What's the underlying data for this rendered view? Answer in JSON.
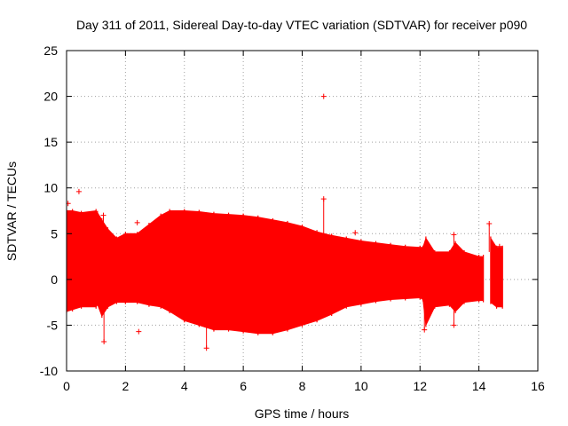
{
  "chart_data": {
    "type": "scatter",
    "title": "Day 311 of 2011, Sidereal Day-to-day VTEC variation (SDTVAR) for receiver p090",
    "xlabel": "GPS time / hours",
    "ylabel": "SDTVAR / TECUs",
    "xlim": [
      0,
      16
    ],
    "ylim": [
      -10,
      25
    ],
    "xticks": [
      0,
      2,
      4,
      6,
      8,
      10,
      12,
      14,
      16
    ],
    "yticks": [
      -10,
      -5,
      0,
      5,
      10,
      15,
      20,
      25
    ],
    "grid": true,
    "marker": "+",
    "color": "#ff0000",
    "series": [
      {
        "name": "SDTVAR",
        "description_of_band": "approximate upper/lower envelope of dense point cloud",
        "envelope": [
          {
            "x": 0.0,
            "high": 7.5,
            "low": -3.5
          },
          {
            "x": 0.2,
            "high": 7.5,
            "low": -3.3
          },
          {
            "x": 0.5,
            "high": 7.3,
            "low": -3.0
          },
          {
            "x": 1.0,
            "high": 7.5,
            "low": -3.0
          },
          {
            "x": 1.05,
            "high": 7.3,
            "low": -2.7
          },
          {
            "x": 1.2,
            "high": 6.5,
            "low": -4.0
          },
          {
            "x": 1.4,
            "high": 5.5,
            "low": -3.0
          },
          {
            "x": 1.7,
            "high": 4.5,
            "low": -2.5
          },
          {
            "x": 2.0,
            "high": 5.0,
            "low": -2.5
          },
          {
            "x": 2.4,
            "high": 5.0,
            "low": -2.5
          },
          {
            "x": 2.8,
            "high": 6.0,
            "low": -2.8
          },
          {
            "x": 3.2,
            "high": 7.0,
            "low": -3.0
          },
          {
            "x": 3.5,
            "high": 7.5,
            "low": -3.5
          },
          {
            "x": 4.0,
            "high": 7.5,
            "low": -4.5
          },
          {
            "x": 4.5,
            "high": 7.4,
            "low": -5.0
          },
          {
            "x": 5.0,
            "high": 7.2,
            "low": -5.5
          },
          {
            "x": 5.5,
            "high": 7.1,
            "low": -5.5
          },
          {
            "x": 6.0,
            "high": 7.0,
            "low": -5.7
          },
          {
            "x": 6.5,
            "high": 6.8,
            "low": -5.9
          },
          {
            "x": 7.0,
            "high": 6.5,
            "low": -5.9
          },
          {
            "x": 7.5,
            "high": 6.2,
            "low": -5.5
          },
          {
            "x": 8.0,
            "high": 5.8,
            "low": -5.0
          },
          {
            "x": 8.5,
            "high": 5.2,
            "low": -4.5
          },
          {
            "x": 9.0,
            "high": 4.8,
            "low": -3.8
          },
          {
            "x": 9.5,
            "high": 4.5,
            "low": -3.0
          },
          {
            "x": 10.0,
            "high": 4.2,
            "low": -2.7
          },
          {
            "x": 10.5,
            "high": 4.0,
            "low": -2.4
          },
          {
            "x": 11.0,
            "high": 3.8,
            "low": -2.2
          },
          {
            "x": 11.5,
            "high": 3.6,
            "low": -2.1
          },
          {
            "x": 12.0,
            "high": 3.5,
            "low": -2.0
          },
          {
            "x": 12.1,
            "high": 3.5,
            "low": -2.2
          },
          {
            "x": 12.2,
            "high": 4.5,
            "low": -5.0
          },
          {
            "x": 12.5,
            "high": 3.0,
            "low": -3.0
          },
          {
            "x": 13.0,
            "high": 3.0,
            "low": -2.8
          },
          {
            "x": 13.2,
            "high": 4.0,
            "low": -3.5
          },
          {
            "x": 13.5,
            "high": 3.0,
            "low": -2.5
          },
          {
            "x": 14.0,
            "high": 2.5,
            "low": -2.3
          },
          {
            "x": 14.15,
            "high": 2.5,
            "low": -2.3
          },
          {
            "x": 14.25,
            "high": null,
            "low": null
          },
          {
            "x": 14.4,
            "high": 4.5,
            "low": -2.5
          },
          {
            "x": 14.6,
            "high": 3.5,
            "low": -3.0
          },
          {
            "x": 14.8,
            "high": 3.5,
            "low": -3.0
          }
        ],
        "outliers": [
          {
            "x": 0.05,
            "y": 8.3
          },
          {
            "x": 0.42,
            "y": 9.6
          },
          {
            "x": 1.25,
            "y": 7.0
          },
          {
            "x": 1.27,
            "y": -6.8
          },
          {
            "x": 2.4,
            "y": 6.2
          },
          {
            "x": 2.45,
            "y": -5.7
          },
          {
            "x": 4.75,
            "y": -7.5
          },
          {
            "x": 8.73,
            "y": 20.0
          },
          {
            "x": 8.73,
            "y": 8.8
          },
          {
            "x": 9.8,
            "y": 5.1
          },
          {
            "x": 12.15,
            "y": -5.5
          },
          {
            "x": 13.15,
            "y": 4.9
          },
          {
            "x": 13.15,
            "y": -5.0
          },
          {
            "x": 14.35,
            "y": 6.1
          },
          {
            "x": 14.7,
            "y": 3.6
          }
        ]
      }
    ]
  }
}
